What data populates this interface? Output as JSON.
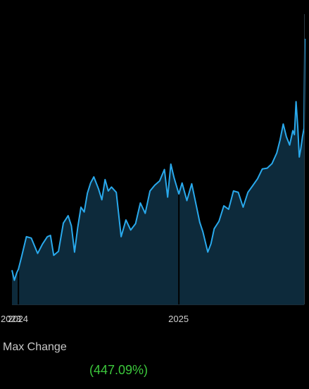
{
  "change": {
    "label": "Max Change",
    "value": "(447.09%)"
  },
  "colors": {
    "line": "#29a9ec",
    "fill": "#0d2a3b",
    "text_positive": "#3cc83c",
    "background": "#000000"
  },
  "chart_data": {
    "type": "area",
    "title": "",
    "xlabel": "",
    "ylabel": "",
    "x_ticks": [
      {
        "label": "2023",
        "x": 2023.96
      },
      {
        "label": "2024",
        "x": 2024.0
      },
      {
        "label": "2025",
        "x": 2025.0
      }
    ],
    "xlim": [
      2023.96,
      2025.78
    ],
    "ylim": [
      0,
      100
    ],
    "markers": [
      2024.0,
      2025.0
    ],
    "series": [
      {
        "x": [
          2023.96,
          2023.975,
          2023.99,
          2024.0,
          2024.02,
          2024.05,
          2024.08,
          2024.12,
          2024.15,
          2024.18,
          2024.2,
          2024.22,
          2024.25,
          2024.28,
          2024.31,
          2024.33,
          2024.35,
          2024.37,
          2024.39,
          2024.41,
          2024.43,
          2024.45,
          2024.47,
          2024.5,
          2024.52,
          2024.54,
          2024.56,
          2024.58,
          2024.61,
          2024.64,
          2024.67,
          2024.7,
          2024.73,
          2024.76,
          2024.79,
          2024.82,
          2024.85,
          2024.88,
          2024.91,
          2024.93,
          2024.95,
          2024.97,
          2025.0,
          2025.02,
          2025.05,
          2025.08,
          2025.11,
          2025.13,
          2025.15,
          2025.18,
          2025.2,
          2025.22,
          2025.25,
          2025.28,
          2025.31,
          2025.34,
          2025.37,
          2025.4,
          2025.43,
          2025.46,
          2025.49,
          2025.52,
          2025.55,
          2025.58,
          2025.61,
          2025.63,
          2025.65,
          2025.67,
          2025.69,
          2025.71,
          2025.72,
          2025.73,
          2025.74,
          2025.75,
          2025.76,
          2025.77,
          2025.78,
          2025.785
        ],
        "y": [
          12.9,
          9.1,
          11.9,
          13.2,
          18.0,
          25.5,
          25.0,
          19.2,
          22.7,
          25.5,
          26.0,
          18.5,
          20.0,
          30.6,
          33.4,
          29.6,
          19.7,
          29.1,
          36.6,
          34.8,
          41.9,
          45.7,
          48.0,
          43.4,
          39.4,
          47.0,
          42.7,
          44.2,
          42.2,
          25.5,
          31.8,
          28.0,
          30.4,
          38.2,
          34.3,
          42.7,
          44.9,
          46.5,
          50.8,
          40.4,
          52.8,
          47.7,
          41.6,
          45.7,
          39.1,
          45.4,
          36.8,
          30.9,
          27.3,
          19.7,
          22.8,
          28.5,
          31.3,
          37.1,
          35.8,
          42.7,
          42.2,
          36.6,
          42.2,
          44.7,
          47.3,
          51.0,
          51.3,
          53.0,
          57.0,
          61.8,
          67.9,
          63.1,
          60.0,
          65.4,
          63.9,
          76.3,
          67.4,
          55.5,
          58.7,
          63.1,
          66.4,
          100.0
        ]
      }
    ]
  }
}
